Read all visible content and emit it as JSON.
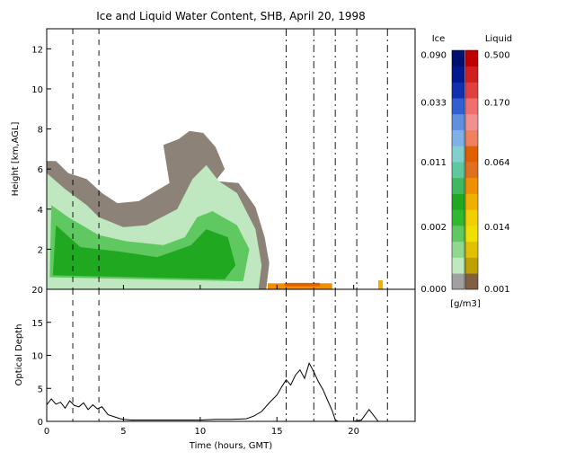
{
  "title": "Ice and Liquid Water Content, SHB, April 20, 1998",
  "colors": {
    "ice_scale": [
      "#a0a0a0",
      "#c0e8c0",
      "#90d890",
      "#60c860",
      "#30b830",
      "#20a820",
      "#40b860",
      "#60c8a0",
      "#80d0d0",
      "#80b0e8",
      "#6090e0",
      "#3060d0",
      "#1030b0",
      "#001890",
      "#001070"
    ],
    "liquid_scale": [
      "#806040",
      "#c0a000",
      "#e0c000",
      "#f0e000",
      "#f0d000",
      "#f0b000",
      "#f09000",
      "#e07020",
      "#e06000",
      "#f08060",
      "#f09090",
      "#f07070",
      "#e04040",
      "#d02020",
      "#c00000"
    ],
    "cloud_base": "#8c8278"
  },
  "chart_data": [
    {
      "type": "heatmap",
      "title": "Ice and Liquid Water Content, SHB, April 20, 1998",
      "xlabel": "",
      "ylabel": "Height [km,AGL]",
      "xlim": [
        0,
        24
      ],
      "ylim": [
        0,
        13
      ],
      "y_ticks": [
        "2",
        "4",
        "6",
        "8",
        "10",
        "12"
      ],
      "dash_lines": [
        1.7,
        3.4,
        15.6,
        17.4,
        18.8,
        20.2,
        22.2
      ],
      "colorbar": {
        "ice_label": "Ice",
        "liquid_label": "Liquid",
        "ice_ticks": [
          "0.090",
          "0.033",
          "0.011",
          "0.002",
          "0.000"
        ],
        "liquid_ticks": [
          "0.500",
          "0.170",
          "0.064",
          "0.014",
          "0.001"
        ],
        "units": "[g/m3]"
      }
    },
    {
      "type": "line",
      "xlabel": "Time (hours, GMT)",
      "ylabel": "Optical Depth",
      "xlim": [
        0,
        24
      ],
      "ylim": [
        0,
        20
      ],
      "x_ticks": [
        "0",
        "5",
        "10",
        "15",
        "20"
      ],
      "y_ticks": [
        "0",
        "5",
        "10",
        "15",
        "20"
      ],
      "x": [
        0.0,
        0.3,
        0.6,
        0.9,
        1.2,
        1.5,
        1.8,
        2.1,
        2.4,
        2.7,
        3.0,
        3.3,
        3.6,
        4.0,
        4.4,
        4.8,
        5.0,
        5.5,
        6.0,
        7.0,
        8.0,
        9.0,
        10.0,
        11.0,
        12.0,
        13.0,
        13.5,
        14.0,
        14.5,
        15.0,
        15.3,
        15.6,
        15.9,
        16.2,
        16.5,
        16.8,
        17.1,
        17.4,
        17.7,
        18.0,
        18.3,
        18.6,
        18.8,
        19.0,
        20.0,
        20.5,
        21.0,
        21.3,
        21.6,
        22.0,
        23.0,
        24.0
      ],
      "y": [
        2.5,
        3.4,
        2.6,
        2.9,
        2.0,
        3.1,
        2.4,
        2.2,
        2.8,
        1.8,
        2.5,
        1.9,
        2.2,
        1.0,
        0.7,
        0.4,
        0.3,
        0.2,
        0.2,
        0.2,
        0.2,
        0.2,
        0.2,
        0.3,
        0.3,
        0.4,
        0.8,
        1.5,
        2.8,
        4.0,
        5.2,
        6.3,
        5.5,
        7.0,
        7.8,
        6.5,
        8.8,
        7.5,
        6.0,
        4.8,
        3.2,
        1.6,
        0.2,
        0.0,
        0.0,
        0.2,
        1.8,
        0.9,
        0.0,
        0.0,
        0.0,
        0.0
      ]
    }
  ]
}
